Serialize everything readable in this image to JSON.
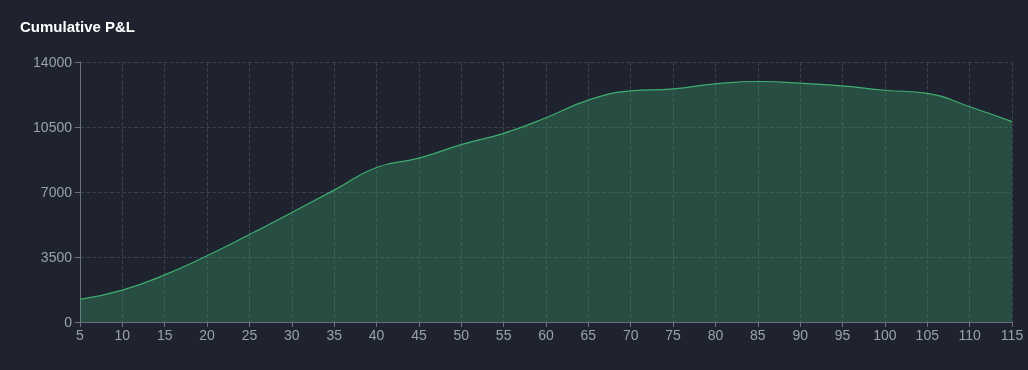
{
  "chart_data": {
    "type": "area",
    "title": "Cumulative P&L",
    "x": [
      5,
      10,
      15,
      20,
      25,
      30,
      35,
      40,
      45,
      50,
      55,
      60,
      65,
      70,
      75,
      80,
      85,
      90,
      95,
      100,
      105,
      110,
      115
    ],
    "series": [
      {
        "color": "#3fae6f",
        "values": [
          1220,
          1720,
          2540,
          3570,
          4710,
          5900,
          7100,
          8320,
          8820,
          9550,
          10160,
          11000,
          11950,
          12440,
          12550,
          12820,
          12950,
          12860,
          12710,
          12480,
          12310,
          11590,
          10790
        ]
      }
    ],
    "xlim": [
      5,
      115
    ],
    "xticks": [
      5,
      10,
      15,
      20,
      25,
      30,
      35,
      40,
      45,
      50,
      55,
      60,
      65,
      70,
      75,
      80,
      85,
      90,
      95,
      100,
      105,
      110,
      115
    ],
    "ylim": [
      0,
      14000
    ],
    "yticks": [
      0,
      3500,
      7000,
      10500,
      14000
    ],
    "grid": true,
    "marker": "none",
    "line_style": "solid"
  }
}
